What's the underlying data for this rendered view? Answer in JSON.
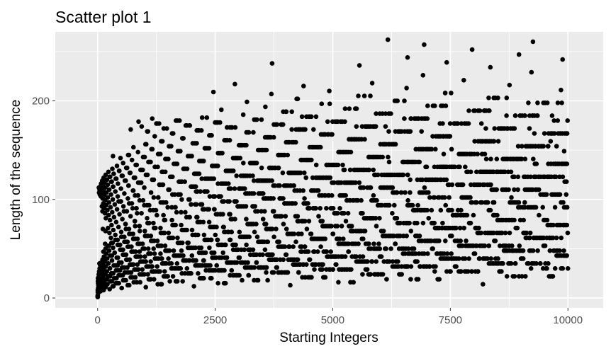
{
  "chart_data": {
    "type": "scatter",
    "title": "Scatter plot 1",
    "xlabel": "Starting Integers",
    "ylabel": "Length of the sequence",
    "xlim": [
      -900,
      10750
    ],
    "ylim": [
      -10,
      270
    ],
    "x_ticks": [
      0,
      2500,
      5000,
      7500,
      10000
    ],
    "x_tick_labels": [
      "0",
      "2500",
      "5000",
      "7500",
      "10000"
    ],
    "y_ticks": [
      0,
      100,
      200
    ],
    "y_tick_labels": [
      "0",
      "100",
      "200"
    ],
    "grid": true,
    "legend": "none",
    "series": [
      {
        "color": "#000000",
        "description_points": "collatz-like bands",
        "x_max": 10000,
        "sample_points": [
          {
            "x": 100,
            "y": 8
          },
          {
            "x": 150,
            "y": 111
          },
          {
            "x": 250,
            "y": 125
          },
          {
            "x": 800,
            "y": 179
          },
          {
            "x": 2450,
            "y": 209
          },
          {
            "x": 2900,
            "y": 217
          },
          {
            "x": 3700,
            "y": 238
          },
          {
            "x": 4700,
            "y": 205
          },
          {
            "x": 5550,
            "y": 236
          },
          {
            "x": 6150,
            "y": 262
          },
          {
            "x": 6550,
            "y": 244
          },
          {
            "x": 6950,
            "y": 257
          },
          {
            "x": 7350,
            "y": 239
          },
          {
            "x": 7950,
            "y": 252
          },
          {
            "x": 8800,
            "y": 247
          },
          {
            "x": 9200,
            "y": 260
          },
          {
            "x": 9900,
            "y": 243
          },
          {
            "x": 2650,
            "y": 15
          },
          {
            "x": 7400,
            "y": 20
          },
          {
            "x": 9650,
            "y": 22
          }
        ]
      }
    ]
  }
}
